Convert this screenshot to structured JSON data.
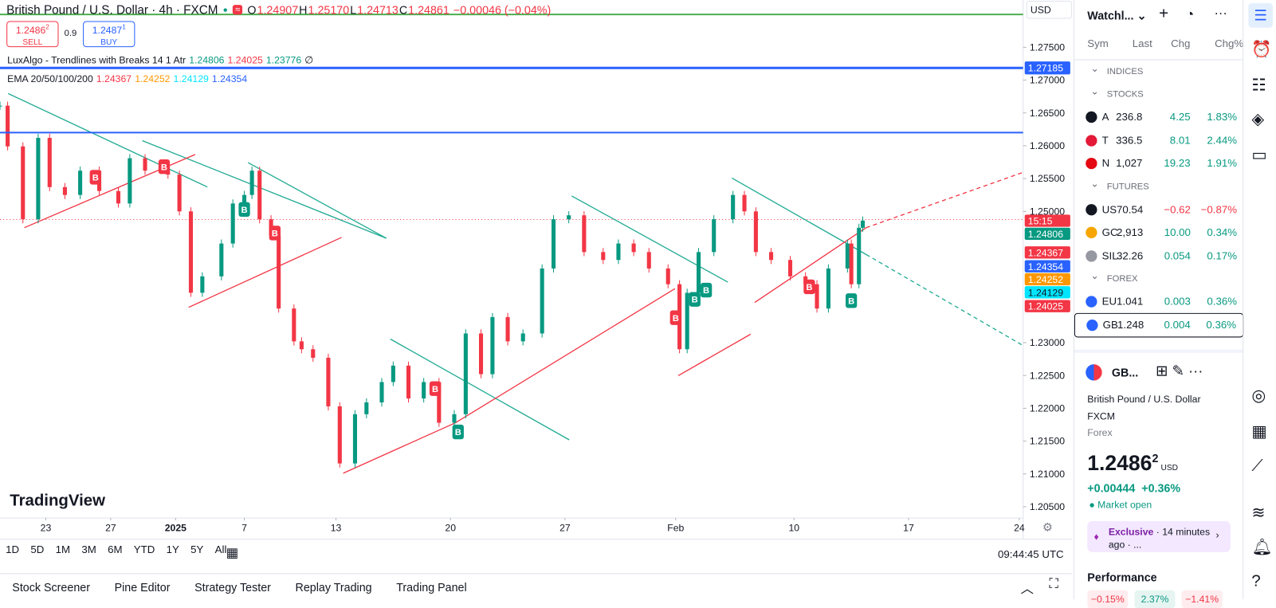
{
  "header": {
    "symbol": "British Pound / U.S. Dollar · 4h · FXCM",
    "ohlc": [
      "O",
      "1.24907",
      "H",
      "1.25170",
      "L",
      "1.24713",
      "C",
      "1.24861",
      "−0.00046 (−0.04%)"
    ]
  },
  "sell": {
    "price": "1.2486",
    "pip": "2",
    "label": "SELL"
  },
  "spread": "0.9",
  "buy": {
    "price": "1.2487",
    "pip": "1",
    "label": "BUY"
  },
  "indicators": [
    {
      "name": "LuxAlgo - Trendlines with Breaks 14 1 Atr",
      "values": [
        {
          "text": "1.24806",
          "color": "#089981"
        },
        {
          "text": "1.24025",
          "color": "#f23645"
        },
        {
          "text": "1.23776",
          "color": "#089981"
        }
      ],
      "extra": "∅"
    },
    {
      "name": "EMA 20/50/100/200",
      "values": [
        {
          "text": "1.24367",
          "color": "#f23645"
        },
        {
          "text": "1.24252",
          "color": "#ff9800"
        },
        {
          "text": "1.24129",
          "color": "#00e5ff"
        },
        {
          "text": "1.24354",
          "color": "#2962ff"
        }
      ]
    }
  ],
  "currency": "USD",
  "chart_data": {
    "type": "candlestick",
    "x": [
      0,
      2,
      6,
      10,
      13,
      17,
      21,
      26,
      31,
      34,
      38,
      44,
      47,
      50,
      53,
      58,
      61,
      64,
      66,
      68,
      71,
      73,
      77,
      79,
      82,
      86,
      89,
      93,
      96,
      100,
      103,
      107,
      111,
      115,
      119,
      122,
      126,
      129,
      133,
      137,
      142,
      145,
      149,
      153,
      158,
      162,
      166,
      170,
      175,
      178,
      180,
      183,
      187,
      192,
      195,
      198,
      202,
      207,
      211,
      214,
      217,
      222,
      223,
      225,
      226
    ],
    "values": [
      1.2661,
      1.2599,
      1.2488,
      1.2612,
      1.2537,
      1.2525,
      1.2562,
      1.2531,
      1.2512,
      1.2581,
      1.2562,
      1.2556,
      1.25,
      1.2376,
      1.2401,
      1.2451,
      1.2512,
      1.2525,
      1.2562,
      1.2488,
      1.2463,
      1.2352,
      1.2302,
      1.229,
      1.2277,
      1.2203,
      1.2116,
      1.2191,
      1.2209,
      1.224,
      1.2265,
      1.2215,
      1.224,
      1.2178,
      1.2191,
      1.2314,
      1.2252,
      1.2339,
      1.2302,
      1.2314,
      1.2413,
      1.2488,
      1.2494,
      1.2438,
      1.2426,
      1.2451,
      1.2438,
      1.2413,
      1.2389,
      1.229,
      1.2376,
      1.2438,
      1.2488,
      1.2525,
      1.25,
      1.2438,
      1.2426,
      1.2401,
      1.2389,
      1.2352,
      1.2413,
      1.2451,
      1.2389,
      1.2475,
      1.2486
    ],
    "xlim": [
      0,
      268
    ],
    "ylim": [
      1.2033,
      1.2822
    ],
    "yticks": [
      {
        "value": 1.275,
        "label": "1.27500"
      },
      {
        "value": 1.27,
        "label": "1.27000"
      },
      {
        "value": 1.265,
        "label": "1.26500"
      },
      {
        "value": 1.26,
        "label": "1.26000"
      },
      {
        "value": 1.255,
        "label": "1.25500"
      },
      {
        "value": 1.25,
        "label": "1.25000"
      },
      {
        "value": 1.23,
        "label": "1.23000"
      },
      {
        "value": 1.225,
        "label": "1.22500"
      },
      {
        "value": 1.22,
        "label": "1.22000"
      },
      {
        "value": 1.215,
        "label": "1.21500"
      },
      {
        "value": 1.21,
        "label": "1.21000"
      },
      {
        "value": 1.205,
        "label": "1.20500"
      }
    ],
    "xticks": [
      {
        "value": 12,
        "label": "23"
      },
      {
        "value": 29,
        "label": "27"
      },
      {
        "value": 46,
        "label": "2025"
      },
      {
        "value": 64,
        "label": "7"
      },
      {
        "value": 88,
        "label": "13"
      },
      {
        "value": 118,
        "label": "20"
      },
      {
        "value": 148,
        "label": "27"
      },
      {
        "value": 177,
        "label": "Feb"
      },
      {
        "value": 208,
        "label": "10"
      },
      {
        "value": 238,
        "label": "17"
      },
      {
        "value": 267,
        "label": "24"
      }
    ],
    "up_color": "#089981",
    "down_color": "#f23645",
    "levels": [
      {
        "value": 1.28,
        "color": "#4caf50"
      },
      {
        "value": 1.27185,
        "label": "1.27185",
        "color": "#2962ff"
      },
      {
        "value": 1.262,
        "color": "#2962ff"
      }
    ],
    "signals": [
      {
        "x": 25,
        "y": 1.2552,
        "label": "B",
        "color": "#f23645"
      },
      {
        "x": 43,
        "y": 1.2568,
        "label": "B",
        "color": "#f23645"
      },
      {
        "x": 72,
        "y": 1.2467,
        "label": "B",
        "color": "#f23645"
      },
      {
        "x": 114,
        "y": 1.223,
        "label": "B",
        "color": "#f23645"
      },
      {
        "x": 177,
        "y": 1.2338,
        "label": "B",
        "color": "#f23645"
      },
      {
        "x": 212,
        "y": 1.2385,
        "label": "B",
        "color": "#f23645"
      },
      {
        "x": 64,
        "y": 1.2503,
        "label": "B",
        "color": "#089981"
      },
      {
        "x": 120,
        "y": 1.2164,
        "label": "B",
        "color": "#089981"
      },
      {
        "x": 182,
        "y": 1.2366,
        "label": "B",
        "color": "#089981"
      },
      {
        "x": 185,
        "y": 1.238,
        "label": "B",
        "color": "#089981"
      },
      {
        "x": 223,
        "y": 1.2364,
        "label": "B",
        "color": "#089981"
      }
    ],
    "price_labels": [
      {
        "text": "15:15",
        "color": "#f23645"
      },
      {
        "text": "1.24806",
        "color": "#089981"
      },
      {
        "text": "1.24367",
        "color": "#f23645"
      },
      {
        "text": "1.24354",
        "color": "#2962ff"
      },
      {
        "text": "1.24252",
        "color": "#ff9800"
      },
      {
        "text": "1.24129",
        "color": "#00e5ff"
      },
      {
        "text": "1.24025",
        "color": "#f23645"
      }
    ]
  },
  "logo": "TradingView",
  "ranges": [
    "1D",
    "5D",
    "1M",
    "3M",
    "6M",
    "YTD",
    "1Y",
    "5Y",
    "All"
  ],
  "clock": "09:44:45 UTC",
  "bottom_tabs": [
    "Stock Screener",
    "Pine Editor",
    "Strategy Tester",
    "Replay Trading",
    "Trading Panel"
  ],
  "watchlist": {
    "title": "Watchl...",
    "columns": [
      "Sym",
      "Last",
      "Chg",
      "Chg%"
    ],
    "sections": [
      {
        "name": "INDICES"
      },
      {
        "name": "STOCKS",
        "rows": [
          [
            "A",
            "236.8",
            "4.25",
            "1.83%"
          ],
          [
            "T",
            "336.5",
            "8.01",
            "2.44%"
          ],
          [
            "N",
            "1,027",
            "19.23",
            "1.91%"
          ]
        ]
      },
      {
        "name": "FUTURES",
        "rows": [
          [
            "US",
            "70.54",
            "−0.62",
            "−0.87%"
          ],
          [
            "GC",
            "2,913",
            "10.00",
            "0.34%"
          ],
          [
            "SIL",
            "32.26",
            "0.054",
            "0.17%"
          ]
        ]
      },
      {
        "name": "FOREX",
        "rows": [
          [
            "EU",
            "1.041",
            "0.003",
            "0.36%"
          ],
          [
            "GB",
            "1.248",
            "0.004",
            "0.36%"
          ]
        ]
      }
    ]
  },
  "details": {
    "short": "GB...",
    "name": "British Pound / U.S. Dollar",
    "exchange": "FXCM",
    "kind": "Forex",
    "price": "1.2486",
    "pip": "2",
    "currency": "USD",
    "change": "+0.00444",
    "change_pct": "+0.36%",
    "status": "Market open",
    "news_tag": "Exclusive",
    "news_text": "· 14 minutes ago · ...",
    "section": "Performance",
    "performance": [
      "−0.15%",
      "2.37%",
      "−1.41%"
    ]
  }
}
